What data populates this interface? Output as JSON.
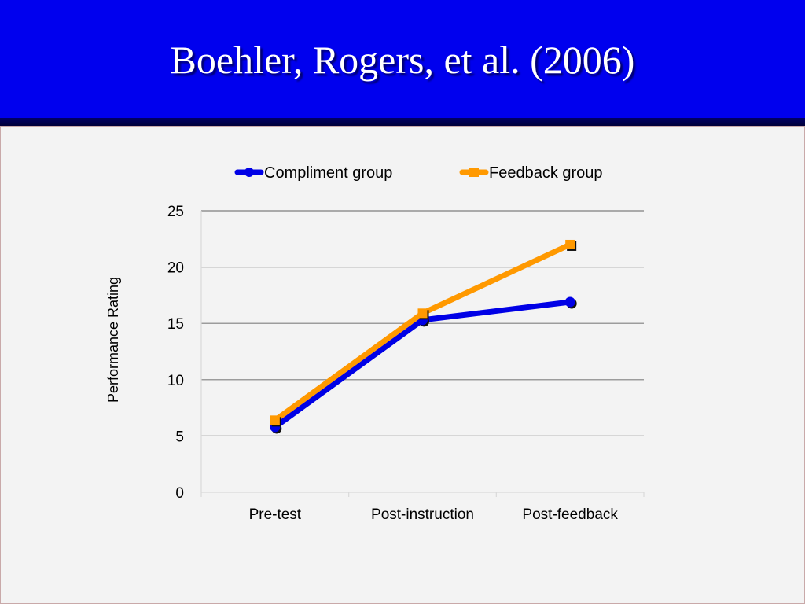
{
  "slide": {
    "title": "Boehler, Rogers, et al. (2006)"
  },
  "colors": {
    "header": "#0000ee",
    "compliment": "#0000e6",
    "feedback": "#ff9900"
  },
  "chart_data": {
    "type": "line",
    "categories": [
      "Pre-test",
      "Post-instruction",
      "Post-feedback"
    ],
    "series": [
      {
        "name": "Compliment group",
        "values": [
          5.8,
          15.3,
          16.9
        ],
        "color": "#0000e6"
      },
      {
        "name": "Feedback group",
        "values": [
          6.4,
          15.9,
          22.0
        ],
        "color": "#ff9900"
      }
    ],
    "ylabel": "Performance Rating",
    "xlabel": "",
    "ylim": [
      0,
      25
    ],
    "yticks": [
      0,
      5,
      10,
      15,
      20,
      25
    ],
    "grid": true,
    "legend": "top"
  }
}
